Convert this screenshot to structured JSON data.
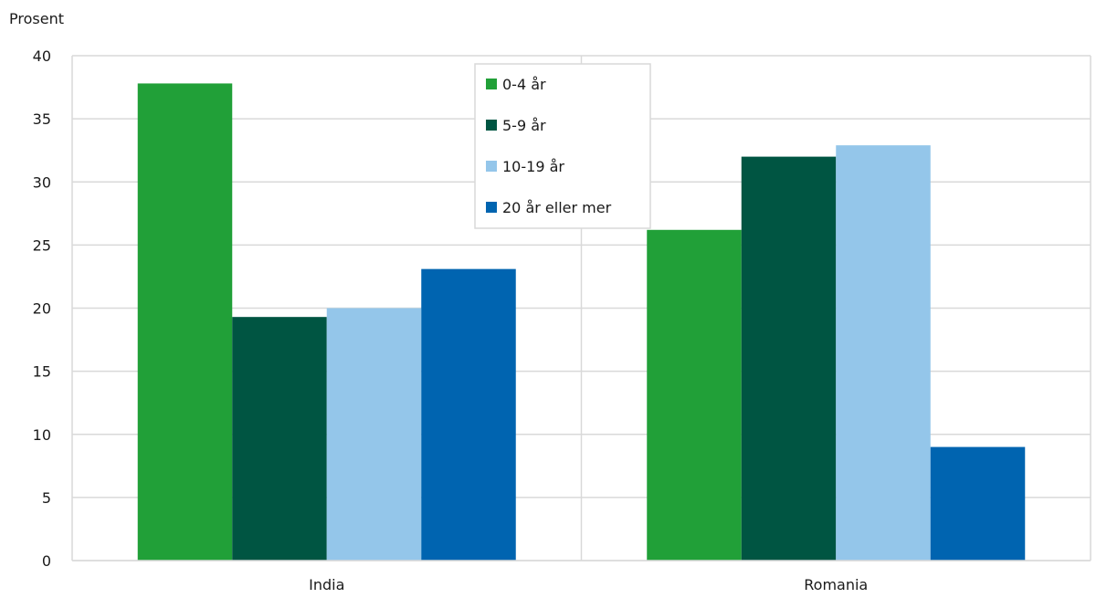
{
  "chart_data": {
    "type": "bar",
    "title": "",
    "xlabel": "",
    "ylabel": "Prosent",
    "ylim": [
      0,
      40
    ],
    "yticks": [
      0,
      5,
      10,
      15,
      20,
      25,
      30,
      35,
      40
    ],
    "categories": [
      "India",
      "Romania"
    ],
    "series": [
      {
        "name": "0-4 år",
        "color": "#21a038",
        "values": [
          37.8,
          26.2
        ]
      },
      {
        "name": "5-9 år",
        "color": "#005542",
        "values": [
          19.3,
          32.0
        ]
      },
      {
        "name": "10-19 år",
        "color": "#94c6ea",
        "values": [
          20.0,
          32.9
        ]
      },
      {
        "name": "20 år eller mer",
        "color": "#0064b0",
        "values": [
          23.1,
          9.0
        ]
      }
    ],
    "grid": true,
    "legend_position": "top-center"
  }
}
